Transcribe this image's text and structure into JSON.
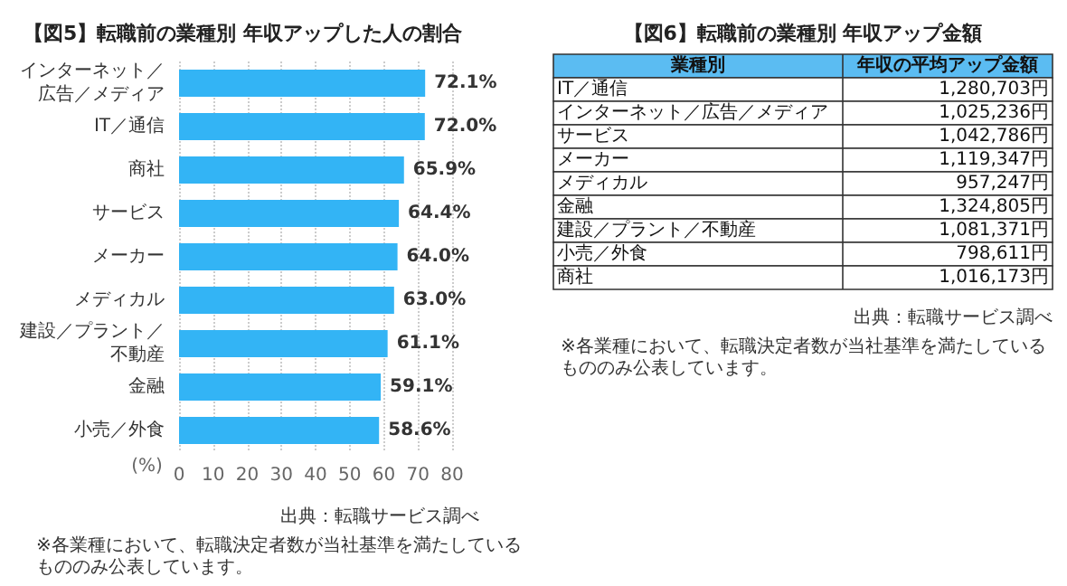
{
  "chart_data": [
    {
      "type": "bar",
      "orientation": "horizontal",
      "title": "【図5】転職前の業種別 年収アップした人の割合",
      "xlabel": "(%)",
      "categories": [
        "インターネット／広告／メディア",
        "IT／通信",
        "商社",
        "サービス",
        "メーカー",
        "メディカル",
        "建設／プラント／不動産",
        "金融",
        "小売／外食"
      ],
      "values": [
        72.1,
        72.0,
        65.9,
        64.4,
        64.0,
        63.0,
        61.1,
        59.1,
        58.6
      ],
      "value_labels": [
        "72.1%",
        "72.0%",
        "65.9%",
        "64.4%",
        "64.0%",
        "63.0%",
        "61.1%",
        "59.1%",
        "58.6%"
      ],
      "color": "#33b4f5",
      "xlim": [
        0,
        80
      ],
      "xticks": [
        0,
        10,
        20,
        30,
        40,
        50,
        60,
        70,
        80
      ],
      "grid": "x",
      "annotations": [
        "出典：転職サービス調べ",
        "※各業種において、転職決定者数が当社基準を満たしているもののみ公表しています。"
      ]
    },
    {
      "type": "other",
      "title": "【図6】転職前の業種別 年収アップ金額",
      "xlabel": "業種別",
      "ylabel": "年収の平均アップ金額",
      "categories": [
        "IT／通信",
        "インターネット／広告／メディア",
        "サービス",
        "メーカー",
        "メディカル",
        "金融",
        "建設／プラント／不動産",
        "小売／外食",
        "商社"
      ],
      "value_labels": [
        "1,280,703円",
        "1,025,236円",
        "1,042,786円",
        "1,119,347円",
        "957,247円",
        "1,324,805円",
        "1,081,371円",
        "798,611円",
        "1,016,173円"
      ],
      "annotations": [
        "出典：転職サービス調べ",
        "※各業種において、転職決定者数が当社基準を満たしているもののみ公表しています。"
      ]
    }
  ]
}
